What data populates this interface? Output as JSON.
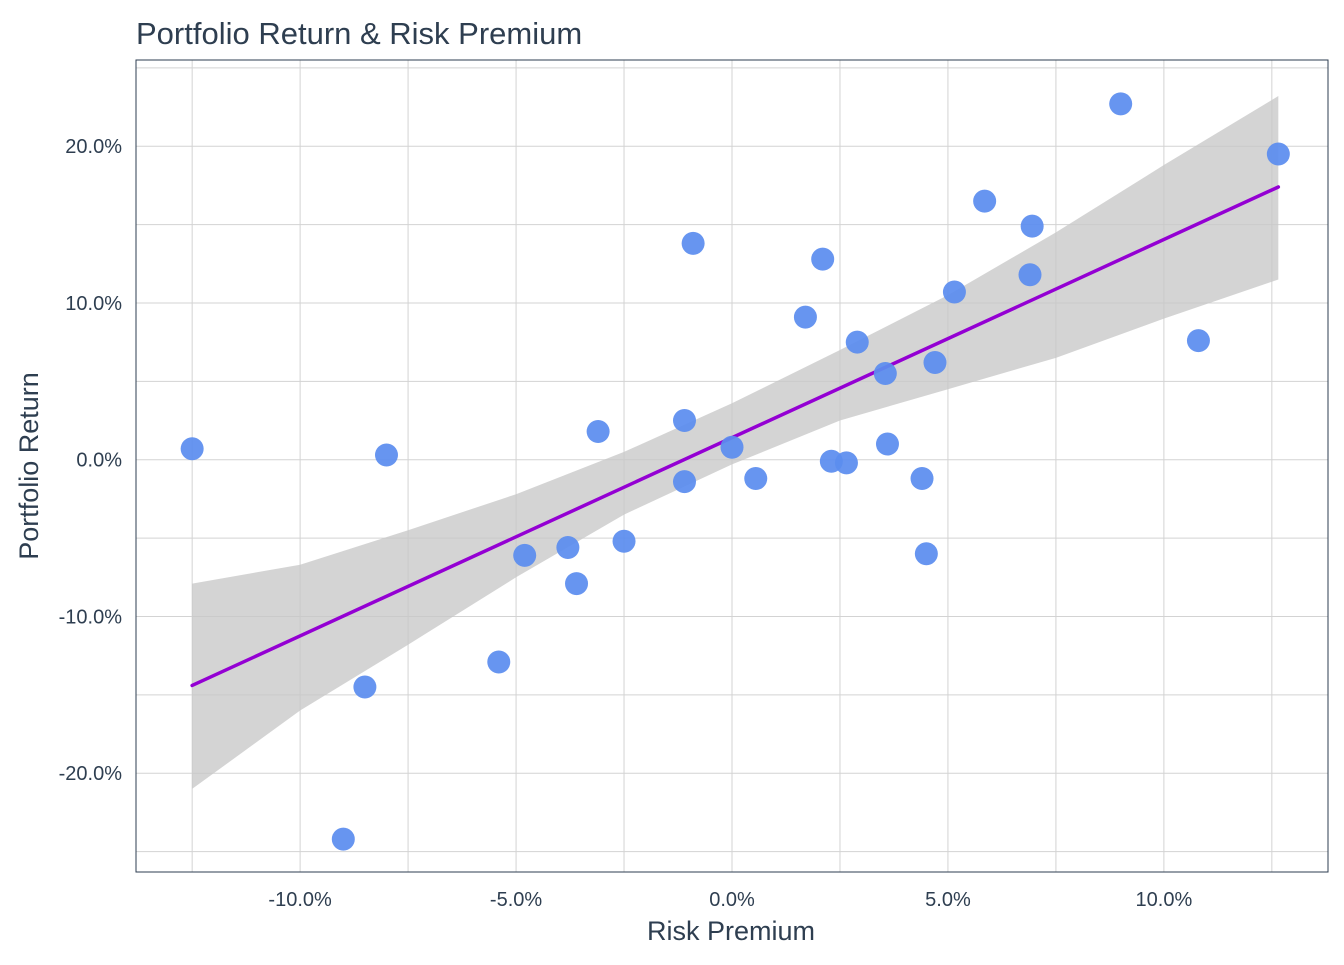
{
  "chart_data": {
    "type": "scatter",
    "title": "Portfolio Return & Risk Premium",
    "xlabel": "Risk Premium",
    "ylabel": "Portfolio Return",
    "xlim": [
      -13.8,
      13.8
    ],
    "ylim": [
      -26.3,
      25.5
    ],
    "x_ticks": [
      -10,
      -5,
      0,
      5,
      10
    ],
    "x_tick_labels": [
      "-10.0%",
      "-5.0%",
      "0.0%",
      "5.0%",
      "10.0%"
    ],
    "y_ticks": [
      -20,
      -10,
      0,
      10,
      20
    ],
    "y_tick_labels": [
      "-20.0%",
      "-10.0%",
      "0.0%",
      "10.0%",
      "20.0%"
    ],
    "grid": true,
    "points": [
      {
        "x": -12.5,
        "y": 0.7
      },
      {
        "x": -9.0,
        "y": -24.2
      },
      {
        "x": -8.5,
        "y": -14.5
      },
      {
        "x": -8.0,
        "y": 0.3
      },
      {
        "x": -5.4,
        "y": -12.9
      },
      {
        "x": -4.8,
        "y": -6.1
      },
      {
        "x": -3.8,
        "y": -5.6
      },
      {
        "x": -3.6,
        "y": -7.9
      },
      {
        "x": -3.1,
        "y": 1.8
      },
      {
        "x": -2.5,
        "y": -5.2
      },
      {
        "x": -1.1,
        "y": 2.5
      },
      {
        "x": -1.1,
        "y": -1.4
      },
      {
        "x": -0.9,
        "y": 13.8
      },
      {
        "x": 0.0,
        "y": 0.8
      },
      {
        "x": 0.55,
        "y": -1.2
      },
      {
        "x": 1.7,
        "y": 9.1
      },
      {
        "x": 2.1,
        "y": 12.8
      },
      {
        "x": 2.3,
        "y": -0.1
      },
      {
        "x": 2.65,
        "y": -0.2
      },
      {
        "x": 2.9,
        "y": 7.5
      },
      {
        "x": 3.55,
        "y": 5.5
      },
      {
        "x": 3.6,
        "y": 1.0
      },
      {
        "x": 4.4,
        "y": -1.2
      },
      {
        "x": 4.5,
        "y": -6.0
      },
      {
        "x": 4.7,
        "y": 6.2
      },
      {
        "x": 5.15,
        "y": 10.7
      },
      {
        "x": 5.85,
        "y": 16.5
      },
      {
        "x": 6.9,
        "y": 11.8
      },
      {
        "x": 6.95,
        "y": 14.9
      },
      {
        "x": 9.0,
        "y": 22.7
      },
      {
        "x": 10.8,
        "y": 7.6
      },
      {
        "x": 12.65,
        "y": 19.5
      }
    ],
    "fit_line": {
      "x": [
        -12.5,
        12.65
      ],
      "y": [
        -14.4,
        17.4
      ]
    },
    "confidence_band": {
      "x": [
        -12.5,
        -10,
        -7.5,
        -5,
        -2.5,
        0,
        2.5,
        5,
        7.5,
        10,
        12.65
      ],
      "lower": [
        -21.0,
        -16.0,
        -11.8,
        -7.5,
        -3.5,
        -0.3,
        2.5,
        4.5,
        6.5,
        9.0,
        11.5
      ],
      "upper": [
        -7.9,
        -6.7,
        -4.5,
        -2.2,
        0.5,
        3.6,
        7.0,
        10.5,
        14.5,
        18.8,
        23.2
      ]
    },
    "colors": {
      "point": "#5b8def",
      "fit_line": "#9400d3",
      "band": "#c8c8c8",
      "grid": "#d3d3d3",
      "text": "#2e3e50"
    }
  }
}
